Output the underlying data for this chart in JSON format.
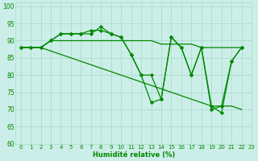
{
  "xlabel": "Humidité relative (%)",
  "background_color": "#cceee8",
  "grid_color": "#aaddcc",
  "line_color": "#008800",
  "xlim": [
    -0.5,
    23
  ],
  "ylim": [
    60,
    101
  ],
  "yticks": [
    60,
    65,
    70,
    75,
    80,
    85,
    90,
    95,
    100
  ],
  "xticks": [
    0,
    1,
    2,
    3,
    4,
    5,
    6,
    7,
    8,
    9,
    10,
    11,
    12,
    13,
    14,
    15,
    16,
    17,
    18,
    19,
    20,
    21,
    22,
    23
  ],
  "line1_x": [
    0,
    1,
    2,
    3,
    4,
    5,
    6,
    7,
    8,
    9,
    10,
    11,
    12,
    13,
    14,
    15,
    16,
    17,
    18,
    19,
    20,
    21,
    22
  ],
  "line1_y": [
    88,
    88,
    88,
    90,
    90,
    90,
    90,
    90,
    90,
    90,
    90,
    90,
    90,
    90,
    89,
    89,
    89,
    89,
    88,
    88,
    88,
    88,
    88
  ],
  "line2_x": [
    0,
    1,
    2,
    3,
    4,
    5,
    6,
    7,
    8,
    9,
    10,
    11,
    12,
    13,
    14,
    15,
    16,
    17,
    18,
    19,
    20,
    21,
    22
  ],
  "line2_y": [
    88,
    88,
    88,
    87,
    86,
    85,
    84,
    83,
    82,
    81,
    80,
    79,
    78,
    77,
    76,
    75,
    74,
    73,
    72,
    71,
    71,
    71,
    70
  ],
  "line3_x": [
    0,
    1,
    2,
    3,
    4,
    5,
    6,
    7,
    8,
    9,
    10,
    11,
    12,
    13,
    14,
    15,
    16,
    17,
    18,
    19,
    20,
    21,
    22
  ],
  "line3_y": [
    88,
    88,
    88,
    90,
    92,
    92,
    92,
    93,
    93,
    92,
    91,
    86,
    80,
    80,
    73,
    91,
    88,
    80,
    88,
    70,
    71,
    84,
    88
  ],
  "line4_x": [
    0,
    1,
    2,
    3,
    4,
    5,
    6,
    7,
    8,
    9,
    10,
    11,
    12,
    13,
    14,
    15,
    16,
    17,
    18,
    19,
    20,
    21,
    22
  ],
  "line4_y": [
    88,
    88,
    88,
    90,
    92,
    92,
    92,
    92,
    94,
    92,
    91,
    86,
    80,
    72,
    73,
    91,
    88,
    80,
    88,
    71,
    69,
    84,
    88
  ]
}
